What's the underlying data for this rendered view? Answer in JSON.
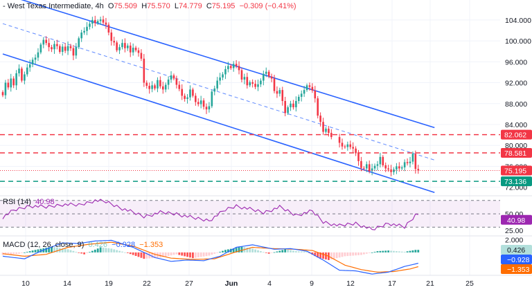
{
  "header": {
    "symbol": "- West Texas Intermediate, 4h",
    "o_label": "O",
    "o_value": "75.509",
    "h_label": "H",
    "h_value": "75.570",
    "l_label": "L",
    "l_value": "74.779",
    "c_label": "C",
    "c_value": "75.195",
    "change": "−0.309 (−0.41%)"
  },
  "rsi_legend": {
    "label": "RSI (14)",
    "value": "40.98"
  },
  "macd_legend": {
    "label": "MACD (12, 26, close, 9)",
    "hist": "0.426",
    "macd": "−0.928",
    "signal": "−1.353"
  },
  "colors": {
    "up": "#26a69a",
    "down": "#f23645",
    "channel": "#2962ff",
    "rsi": "#9c27b0",
    "macd": "#2962ff",
    "signal": "#ff6d00",
    "resistance": "#f23645",
    "support": "#089981",
    "price_line": "#f23645"
  },
  "chart_data": [
    {
      "type": "candlestick",
      "title": "West Texas Intermediate, 4h",
      "timeframe": "4h",
      "x_ticks": [
        "10",
        "14",
        "19",
        "22",
        "27",
        "Jun",
        "4",
        "9",
        "12",
        "17",
        "21",
        "25"
      ],
      "y_ticks": [
        72,
        76,
        80,
        84,
        88,
        92,
        96,
        100,
        104
      ],
      "y_tick_labels": [
        "72.000",
        "76.000",
        "80.000",
        "84.000",
        "88.000",
        "92.000",
        "96.000",
        "100.000",
        "104.000"
      ],
      "ylim": [
        70.5,
        106.5
      ],
      "grid": true,
      "closes": [
        89.6,
        92.0,
        91.1,
        92.8,
        91.5,
        93.8,
        94.7,
        92.4,
        93.6,
        94.9,
        95.5,
        96.4,
        96.8,
        97.8,
        99.3,
        100.2,
        99.6,
        98.8,
        98.4,
        99.4,
        99.0,
        97.9,
        98.9,
        98.1,
        99.0,
        98.6,
        97.2,
        98.8,
        100.5,
        101.6,
        101.9,
        102.7,
        103.3,
        104.0,
        103.4,
        103.8,
        104.1,
        103.5,
        103.1,
        101.6,
        100.0,
        99.7,
        98.2,
        98.8,
        99.6,
        98.6,
        99.1,
        97.8,
        98.7,
        98.2,
        97.7,
        96.6,
        92.0,
        91.4,
        90.8,
        91.5,
        90.9,
        92.5,
        91.3,
        90.7,
        91.6,
        92.6,
        93.4,
        92.8,
        91.6,
        90.8,
        89.5,
        88.9,
        89.2,
        90.7,
        89.5,
        88.3,
        87.9,
        88.6,
        87.4,
        86.9,
        87.5,
        90.3,
        90.9,
        92.4,
        93.0,
        93.6,
        94.6,
        95.2,
        94.8,
        95.6,
        95.2,
        94.4,
        92.6,
        93.1,
        91.5,
        92.1,
        91.8,
        91.2,
        91.7,
        92.4,
        93.7,
        94.1,
        93.2,
        92.8,
        90.4,
        89.9,
        90.6,
        88.5,
        86.2,
        87.3,
        88.0,
        87.3,
        88.5,
        89.3,
        89.9,
        90.6,
        91.5,
        91.2,
        90.5,
        89.0,
        85.7,
        84.5,
        82.6,
        83.2,
        82.4,
        81.6,
        null,
        null,
        80.5,
        79.8,
        79.7,
        80.2,
        79.7,
        79.4,
        78.5,
        77.0,
        75.7,
        75.6,
        76.4,
        75.1,
        75.6,
        76.1,
        76.4,
        77.8,
        76.2,
        75.6,
        75.4,
        74.9,
        75.4,
        76.0,
        75.6,
        75.8,
        76.8,
        76.6,
        76.9,
        78.4,
        75.5,
        75.195
      ],
      "levels": [
        {
          "value": 82.062,
          "label": "82.062",
          "kind": "resistance"
        },
        {
          "value": 78.581,
          "label": "78.581",
          "kind": "resistance"
        },
        {
          "value": 73.136,
          "label": "73.136",
          "kind": "support"
        }
      ],
      "last_price": {
        "value": 75.195,
        "label": "75.195"
      },
      "channel": {
        "upper": [
          [
            0,
            109.0
          ],
          [
            159,
            83.4
          ]
        ],
        "lower": [
          [
            0,
            97.5
          ],
          [
            159,
            71.0
          ]
        ],
        "mid": [
          [
            0,
            103.3
          ],
          [
            159,
            77.2
          ]
        ]
      }
    },
    {
      "type": "line",
      "title": "RSI (14)",
      "y_ticks": [
        25,
        50
      ],
      "y_tick_labels": [
        "25.00",
        "50.00"
      ],
      "ylim": [
        18,
        77
      ],
      "band": [
        30,
        70
      ],
      "midline": 50,
      "series": [
        {
          "name": "RSI (14)",
          "value_label": "40.98",
          "anchors": [
            [
              0,
              45
            ],
            [
              4,
              55
            ],
            [
              10,
              62
            ],
            [
              16,
              60
            ],
            [
              22,
              64
            ],
            [
              28,
              63
            ],
            [
              34,
              70
            ],
            [
              38,
              68
            ],
            [
              44,
              58
            ],
            [
              52,
              46
            ],
            [
              58,
              52
            ],
            [
              64,
              50
            ],
            [
              70,
              44
            ],
            [
              76,
              40
            ],
            [
              82,
              56
            ],
            [
              86,
              62
            ],
            [
              90,
              58
            ],
            [
              96,
              52
            ],
            [
              102,
              60
            ],
            [
              108,
              48
            ],
            [
              114,
              54
            ],
            [
              118,
              38
            ],
            [
              124,
              32
            ],
            [
              130,
              36
            ],
            [
              136,
              26
            ],
            [
              142,
              36
            ],
            [
              148,
              30
            ],
            [
              152,
              48
            ],
            [
              156,
              52
            ],
            [
              159,
              40.98
            ]
          ]
        }
      ]
    },
    {
      "type": "bar+line",
      "title": "MACD (12, 26, close, 9)",
      "y_ticks": [
        2,
        -2
      ],
      "y_tick_labels": [
        "2.000",
        "−2.000"
      ],
      "ylim": [
        -3.6,
        2.6
      ],
      "hist_anchors": [
        [
          0,
          -0.4
        ],
        [
          6,
          -0.2
        ],
        [
          12,
          0.4
        ],
        [
          18,
          0.9
        ],
        [
          24,
          0.5
        ],
        [
          30,
          -0.3
        ],
        [
          36,
          0.8
        ],
        [
          40,
          0.6
        ],
        [
          46,
          -0.1
        ],
        [
          52,
          -1.0
        ],
        [
          58,
          -0.8
        ],
        [
          64,
          -0.3
        ],
        [
          70,
          -0.9
        ],
        [
          76,
          -0.5
        ],
        [
          82,
          0.4
        ],
        [
          88,
          0.9
        ],
        [
          92,
          0.6
        ],
        [
          98,
          -0.2
        ],
        [
          104,
          0.5
        ],
        [
          108,
          0.2
        ],
        [
          112,
          0.1
        ],
        [
          116,
          -0.8
        ],
        [
          120,
          -1.2
        ],
        [
          126,
          -0.6
        ],
        [
          132,
          -0.4
        ],
        [
          138,
          0.2
        ],
        [
          142,
          0.3
        ],
        [
          148,
          0.1
        ],
        [
          152,
          0.4
        ],
        [
          159,
          0.426
        ]
      ],
      "macd_anchors": [
        [
          0,
          -0.6
        ],
        [
          8,
          -1.0
        ],
        [
          14,
          0.2
        ],
        [
          22,
          1.5
        ],
        [
          28,
          1.4
        ],
        [
          34,
          1.8
        ],
        [
          40,
          1.9
        ],
        [
          48,
          0.8
        ],
        [
          56,
          -0.8
        ],
        [
          62,
          -1.4
        ],
        [
          68,
          -1.2
        ],
        [
          74,
          -1.3
        ],
        [
          80,
          -0.6
        ],
        [
          86,
          0.8
        ],
        [
          92,
          1.2
        ],
        [
          100,
          0.5
        ],
        [
          106,
          0.6
        ],
        [
          112,
          0.2
        ],
        [
          118,
          -1.2
        ],
        [
          124,
          -2.8
        ],
        [
          130,
          -2.9
        ],
        [
          136,
          -3.4
        ],
        [
          142,
          -3.1
        ],
        [
          148,
          -2.2
        ],
        [
          154,
          -1.6
        ],
        [
          159,
          -0.928
        ]
      ],
      "signal_anchors": [
        [
          0,
          -0.2
        ],
        [
          8,
          -0.6
        ],
        [
          16,
          -0.3
        ],
        [
          24,
          0.8
        ],
        [
          32,
          1.3
        ],
        [
          40,
          1.6
        ],
        [
          48,
          1.0
        ],
        [
          56,
          -0.3
        ],
        [
          62,
          -0.9
        ],
        [
          70,
          -1.1
        ],
        [
          78,
          -1.0
        ],
        [
          86,
          0.1
        ],
        [
          92,
          0.8
        ],
        [
          100,
          0.6
        ],
        [
          108,
          0.5
        ],
        [
          114,
          0.3
        ],
        [
          120,
          -0.6
        ],
        [
          126,
          -2.0
        ],
        [
          132,
          -2.7
        ],
        [
          138,
          -3.1
        ],
        [
          144,
          -3.0
        ],
        [
          150,
          -2.6
        ],
        [
          155,
          -2.0
        ],
        [
          159,
          -1.353
        ]
      ],
      "series": [
        {
          "name": "Histogram",
          "value_label": "0.426"
        },
        {
          "name": "MACD",
          "value_label": "−0.928"
        },
        {
          "name": "Signal",
          "value_label": "−1.353"
        }
      ]
    }
  ]
}
